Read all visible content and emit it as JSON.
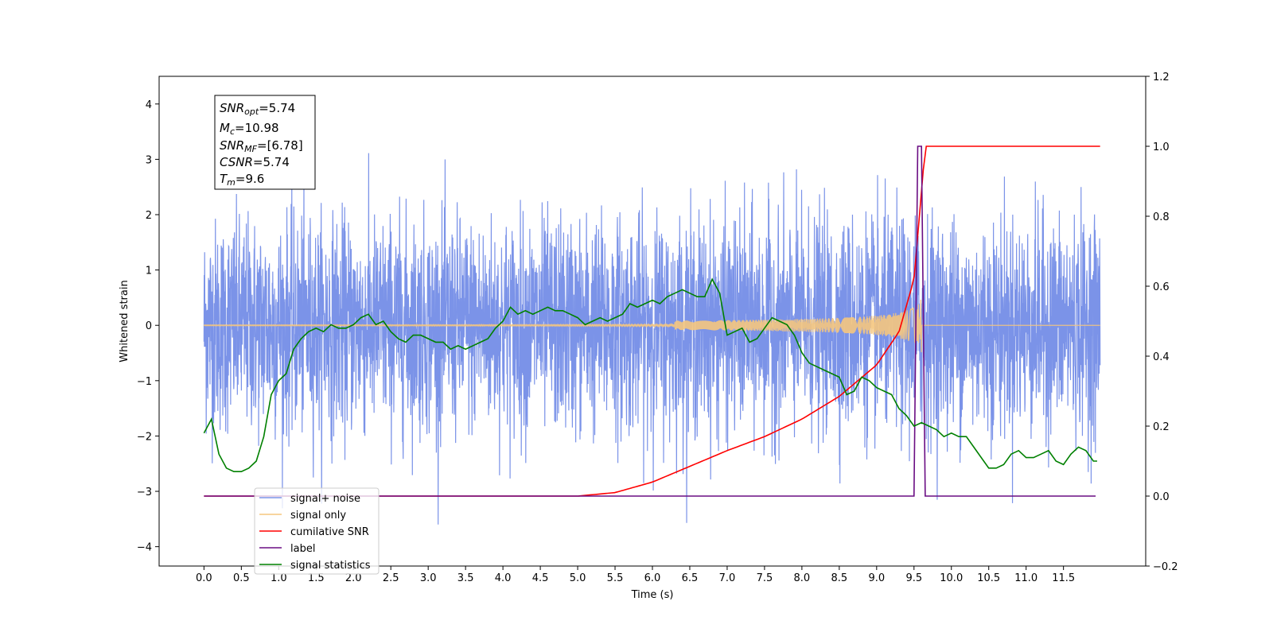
{
  "chart_data": {
    "type": "line",
    "xlabel": "Time (s)",
    "ylabel": "Whitened strain",
    "xlim": [
      -0.6,
      12.6
    ],
    "ylim": [
      -4.35,
      4.5
    ],
    "y2lim": [
      -0.2,
      1.2
    ],
    "x_ticks": [
      "0.0",
      "0.5",
      "1.0",
      "1.5",
      "2.0",
      "2.5",
      "3.0",
      "3.5",
      "4.0",
      "4.5",
      "5.0",
      "5.5",
      "6.0",
      "6.5",
      "7.0",
      "7.5",
      "8.0",
      "8.5",
      "9.0",
      "9.5",
      "10.0",
      "10.5",
      "11.0",
      "11.5"
    ],
    "y_ticks": [
      "−4",
      "−3",
      "−2",
      "−1",
      "0",
      "1",
      "2",
      "3",
      "4"
    ],
    "y2_ticks": [
      "−0.2",
      "0.0",
      "0.2",
      "0.4",
      "0.6",
      "0.8",
      "1.0",
      "1.2"
    ],
    "legend_position": "lower-left",
    "info_box": {
      "line1_var": "SNR",
      "line1_sub": "opt",
      "line1_val": "=5.74",
      "line2_var": "M",
      "line2_sub": "c",
      "line2_val": "=10.98",
      "line3_var": "SNR",
      "line3_sub": "MF",
      "line3_val": "=[6.78]",
      "line4_var": "CSNR",
      "line4_val": "=5.74",
      "line5_var": "T",
      "line5_sub": "m",
      "line5_val": "=9.6"
    },
    "series": [
      {
        "name": "signal+ noise",
        "color": "#7b93e8",
        "axis": "left",
        "x_range": [
          0,
          11.99
        ],
        "amplitude_std": 0.95
      },
      {
        "name": "signal only",
        "color": "#f5c77e",
        "axis": "left",
        "chirp_end": 9.6,
        "peak_amplitude": 0.5
      },
      {
        "name": "cumilative SNR",
        "color": "#ff0000",
        "axis": "right",
        "x": [
          0,
          5.0,
          5.5,
          6.0,
          6.5,
          7.0,
          7.5,
          8.0,
          8.5,
          9.0,
          9.3,
          9.5,
          9.6,
          9.65,
          11.99
        ],
        "y": [
          0.0,
          0.0,
          0.01,
          0.04,
          0.085,
          0.13,
          0.17,
          0.22,
          0.285,
          0.375,
          0.47,
          0.62,
          0.87,
          1.0,
          1.0
        ]
      },
      {
        "name": "label",
        "color": "#6a0d83",
        "axis": "right",
        "x": [
          0,
          9.5,
          9.55,
          9.6,
          9.65,
          11.93
        ],
        "y": [
          0.0,
          0.0,
          1.0,
          1.0,
          0.0,
          0.0
        ]
      },
      {
        "name": "signal statistics",
        "color": "#008000",
        "axis": "right",
        "x": [
          0,
          0.1,
          0.2,
          0.3,
          0.4,
          0.5,
          0.6,
          0.7,
          0.8,
          0.9,
          1.0,
          1.1,
          1.2,
          1.3,
          1.4,
          1.5,
          1.6,
          1.7,
          1.8,
          1.9,
          2.0,
          2.1,
          2.2,
          2.3,
          2.4,
          2.5,
          2.6,
          2.7,
          2.8,
          2.9,
          3.0,
          3.1,
          3.2,
          3.3,
          3.4,
          3.5,
          3.6,
          3.7,
          3.8,
          3.9,
          4.0,
          4.1,
          4.2,
          4.3,
          4.4,
          4.5,
          4.6,
          4.7,
          4.8,
          4.9,
          5.0,
          5.1,
          5.2,
          5.3,
          5.4,
          5.5,
          5.6,
          5.7,
          5.8,
          5.9,
          6.0,
          6.1,
          6.2,
          6.3,
          6.4,
          6.5,
          6.6,
          6.7,
          6.8,
          6.9,
          7.0,
          7.1,
          7.2,
          7.3,
          7.4,
          7.5,
          7.6,
          7.7,
          7.8,
          7.9,
          8.0,
          8.1,
          8.2,
          8.3,
          8.4,
          8.5,
          8.6,
          8.7,
          8.8,
          8.9,
          9.0,
          9.1,
          9.2,
          9.3,
          9.4,
          9.5,
          9.6,
          9.7,
          9.8,
          9.9,
          10.0,
          10.1,
          10.2,
          10.3,
          10.4,
          10.5,
          10.6,
          10.7,
          10.8,
          10.9,
          11.0,
          11.1,
          11.2,
          11.3,
          11.4,
          11.5,
          11.6,
          11.7,
          11.8,
          11.9,
          11.95
        ],
        "y": [
          0.18,
          0.22,
          0.12,
          0.08,
          0.07,
          0.07,
          0.08,
          0.1,
          0.17,
          0.29,
          0.33,
          0.35,
          0.42,
          0.45,
          0.47,
          0.48,
          0.47,
          0.49,
          0.48,
          0.48,
          0.49,
          0.51,
          0.52,
          0.49,
          0.5,
          0.47,
          0.45,
          0.44,
          0.46,
          0.46,
          0.45,
          0.44,
          0.44,
          0.42,
          0.43,
          0.42,
          0.43,
          0.44,
          0.45,
          0.48,
          0.5,
          0.54,
          0.52,
          0.53,
          0.52,
          0.53,
          0.54,
          0.53,
          0.53,
          0.52,
          0.51,
          0.49,
          0.5,
          0.51,
          0.5,
          0.51,
          0.52,
          0.55,
          0.54,
          0.55,
          0.56,
          0.55,
          0.57,
          0.58,
          0.59,
          0.58,
          0.57,
          0.57,
          0.62,
          0.58,
          0.46,
          0.47,
          0.48,
          0.44,
          0.45,
          0.48,
          0.51,
          0.5,
          0.49,
          0.46,
          0.41,
          0.38,
          0.37,
          0.36,
          0.35,
          0.34,
          0.29,
          0.3,
          0.34,
          0.33,
          0.31,
          0.3,
          0.29,
          0.25,
          0.23,
          0.2,
          0.21,
          0.2,
          0.19,
          0.17,
          0.18,
          0.17,
          0.17,
          0.14,
          0.11,
          0.08,
          0.08,
          0.09,
          0.12,
          0.13,
          0.11,
          0.11,
          0.12,
          0.13,
          0.1,
          0.09,
          0.12,
          0.14,
          0.13,
          0.1,
          0.1
        ]
      }
    ]
  }
}
